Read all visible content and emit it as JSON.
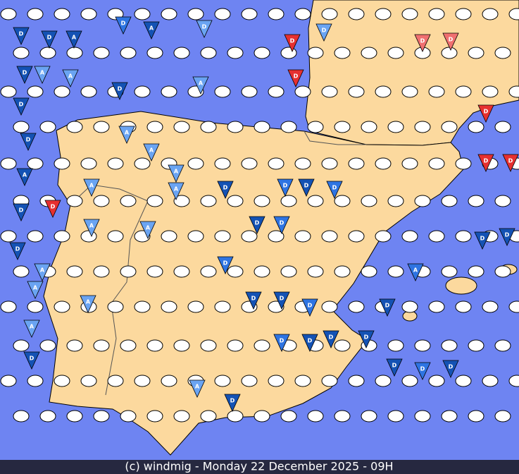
{
  "footer": "(c) windmig - Monday 22 December 2025 - 09H",
  "markers": [
    "D",
    "A",
    "D",
    "D",
    "D",
    "A",
    "D",
    "D",
    "D",
    "D",
    "D",
    "D",
    "A",
    "A",
    "A",
    "D",
    "D",
    "D",
    "A",
    "D",
    "A",
    "A",
    "A",
    "A",
    "D",
    "A",
    "D",
    "D",
    "D",
    "D",
    "D",
    "A",
    "A",
    "A",
    "D",
    "D",
    "D",
    "D",
    "D",
    "D",
    "A",
    "A",
    "D",
    "D",
    "D",
    "D",
    "D",
    "D",
    "A",
    "A",
    "D",
    "D",
    "D",
    "A",
    "D",
    "D",
    "D",
    "D",
    "D",
    "D"
  ]
}
